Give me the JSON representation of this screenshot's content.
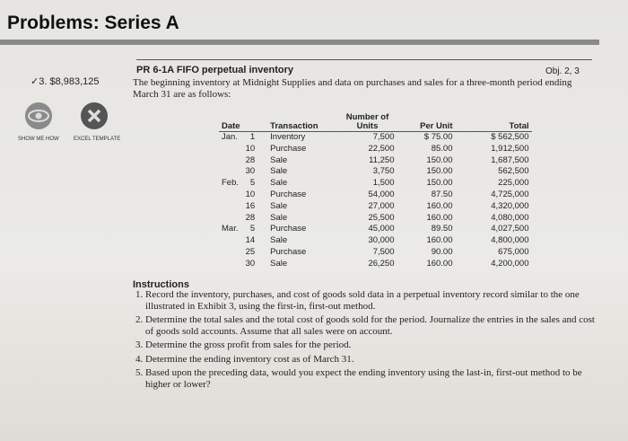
{
  "header": {
    "title": "Problems: Series A"
  },
  "answer": "✓3. $8,983,125",
  "icons": [
    {
      "name": "eye-icon",
      "label": "SHOW ME HOW"
    },
    {
      "name": "excel-x-icon",
      "label": "EXCEL TEMPLATE"
    }
  ],
  "problem": {
    "title": "PR 6-1A  FIFO perpetual inventory",
    "obj": "Obj. 2, 3",
    "intro": "The beginning inventory at Midnight Supplies and data on purchases and sales for a three-month period ending March 31 are as follows:"
  },
  "table": {
    "headers": [
      "Date",
      "",
      "Transaction",
      "Number of Units",
      "Per Unit",
      "Total"
    ],
    "rows": [
      [
        "Jan.",
        "1",
        "Inventory",
        "7,500",
        "$ 75.00",
        "$  562,500"
      ],
      [
        "",
        "10",
        "Purchase",
        "22,500",
        "85.00",
        "1,912,500"
      ],
      [
        "",
        "28",
        "Sale",
        "11,250",
        "150.00",
        "1,687,500"
      ],
      [
        "",
        "30",
        "Sale",
        "3,750",
        "150.00",
        "562,500"
      ],
      [
        "Feb.",
        "5",
        "Sale",
        "1,500",
        "150.00",
        "225,000"
      ],
      [
        "",
        "10",
        "Purchase",
        "54,000",
        "87.50",
        "4,725,000"
      ],
      [
        "",
        "16",
        "Sale",
        "27,000",
        "160.00",
        "4,320,000"
      ],
      [
        "",
        "28",
        "Sale",
        "25,500",
        "160.00",
        "4,080,000"
      ],
      [
        "Mar.",
        "5",
        "Purchase",
        "45,000",
        "89.50",
        "4,027,500"
      ],
      [
        "",
        "14",
        "Sale",
        "30,000",
        "160.00",
        "4,800,000"
      ],
      [
        "",
        "25",
        "Purchase",
        "7,500",
        "90.00",
        "675,000"
      ],
      [
        "",
        "30",
        "Sale",
        "26,250",
        "160.00",
        "4,200,000"
      ]
    ]
  },
  "instructions": {
    "heading": "Instructions",
    "items": [
      "Record the inventory, purchases, and cost of goods sold data in a perpetual inventory record similar to the one illustrated in Exhibit 3, using the first-in, first-out method.",
      "Determine the total sales and the total cost of goods sold for the period. Journalize the entries in the sales and cost of goods sold accounts. Assume that all sales were on account.",
      "Determine the gross profit from sales for the period.",
      "Determine the ending inventory cost as of March 31.",
      "Based upon the preceding data, would you expect the ending inventory using the last-in, first-out method to be higher or lower?"
    ]
  }
}
